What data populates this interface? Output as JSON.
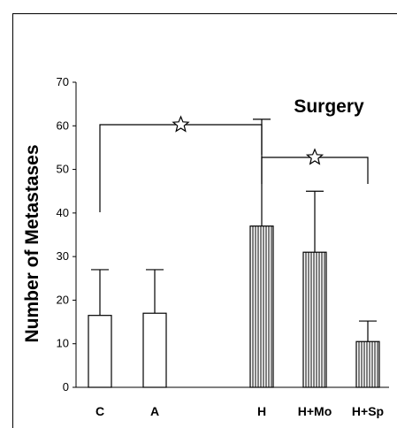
{
  "chart_data": {
    "type": "bar",
    "categories": [
      "C",
      "A",
      "H",
      "H+Mo",
      "H+Sp"
    ],
    "values": [
      16.5,
      17,
      37,
      31,
      10.5
    ],
    "errors": [
      10.5,
      10,
      24.5,
      14,
      4.7
    ],
    "ylabel": "Number of Metastases",
    "xlabel": "",
    "ylim": [
      0,
      70
    ],
    "yticks": [
      0,
      10,
      20,
      30,
      40,
      50,
      60,
      70
    ],
    "annotation": "Surgery",
    "fills": [
      "open",
      "open",
      "striped",
      "striped",
      "striped"
    ],
    "significance": [
      {
        "from": "C",
        "to": "H",
        "marker": "star"
      },
      {
        "from": "H",
        "to": "H+Sp",
        "marker": "star"
      }
    ],
    "grid": false,
    "colors": {
      "ink": "#000000",
      "background": "#ffffff"
    }
  }
}
